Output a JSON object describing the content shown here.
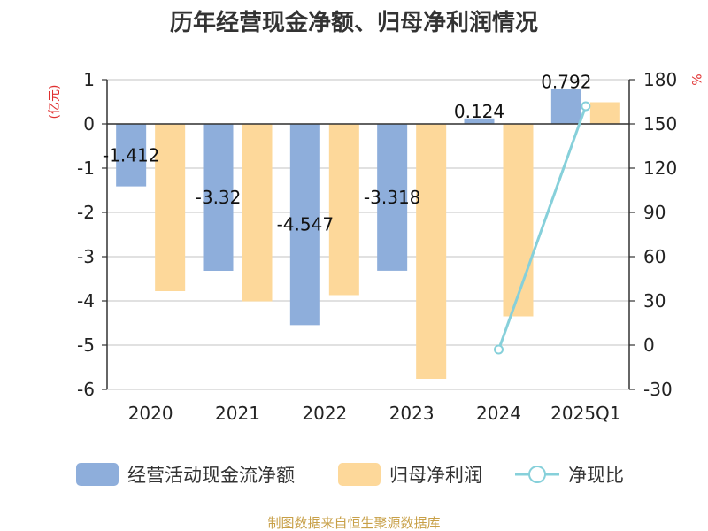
{
  "chart_data": {
    "type": "bar",
    "title": "历年经营现金净额、归母净利润情况",
    "categories": [
      "2020",
      "2021",
      "2022",
      "2023",
      "2024",
      "2025Q1"
    ],
    "y_left": {
      "unit": "(亿元)",
      "ylim": [
        -6,
        1
      ],
      "ticks": [
        1,
        0,
        -1,
        -2,
        -3,
        -4,
        -5,
        -6
      ],
      "tick_labels": [
        "1",
        "0",
        "-1",
        "-2",
        "-3",
        "-4",
        "-5",
        "-6"
      ]
    },
    "y_right": {
      "unit": "%",
      "ylim": [
        -30,
        180
      ],
      "ticks": [
        180,
        150,
        120,
        90,
        60,
        30,
        0,
        -30
      ],
      "tick_labels": [
        "180",
        "150",
        "120",
        "90",
        "60",
        "30",
        "0",
        "-30"
      ]
    },
    "series": [
      {
        "name": "经营活动现金流净额",
        "type": "bar",
        "axis": "left",
        "color": "#8eaedb",
        "values": [
          -1.412,
          -3.32,
          -4.547,
          -3.318,
          0.124,
          0.792
        ],
        "labels": [
          "-1.412",
          "-3.32",
          "-4.547",
          "-3.318",
          "0.124",
          "0.792"
        ]
      },
      {
        "name": "归母净利润",
        "type": "bar",
        "axis": "left",
        "color": "#fdd89a",
        "values": [
          -3.78,
          -4.01,
          -3.87,
          -5.76,
          -4.35,
          0.49
        ]
      },
      {
        "name": "净现比",
        "type": "line",
        "axis": "right",
        "color": "#86d0da",
        "points": [
          {
            "category": "2024",
            "value": -3
          },
          {
            "category": "2025Q1",
            "value": 162
          }
        ]
      }
    ],
    "grid": true,
    "legend_position": "bottom"
  },
  "footer": {
    "source": "制图数据来自恒生聚源数据库",
    "source_color": "#c8a048"
  }
}
